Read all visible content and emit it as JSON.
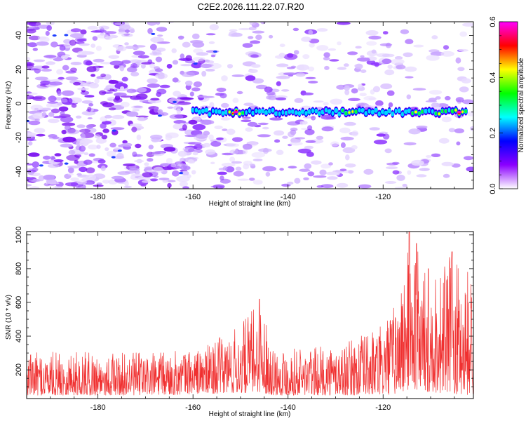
{
  "title": "C2E2.2026.111.22.07.R20",
  "chart_data": [
    {
      "type": "heatmap",
      "name": "spectrogram",
      "xlabel": "Height of straight line (km)",
      "ylabel": "Frequency (Hz)",
      "xlim": [
        -195,
        -101
      ],
      "ylim": [
        -50,
        48
      ],
      "x_ticks": [
        -180,
        -160,
        -140,
        -120
      ],
      "y_ticks": [
        -40,
        -20,
        0,
        20,
        40
      ],
      "signal_line": {
        "frequency_hz": -5,
        "x_start": -160,
        "x_end": -102,
        "peaks": [
          {
            "x": -151,
            "amplitude": 0.6
          },
          {
            "x": -127,
            "amplitude": 0.5
          },
          {
            "x": -113,
            "amplitude": 0.45
          },
          {
            "x": -108,
            "amplitude": 0.45
          },
          {
            "x": -104,
            "amplitude": 0.6
          }
        ]
      },
      "colorbar": {
        "label": "Normalized spectral amplitude",
        "range": [
          0.0,
          0.6
        ],
        "ticks": [
          0.0,
          0.2,
          0.4,
          0.6
        ],
        "tick_labels": [
          "0.0",
          "0.2",
          "0.4",
          "0.6"
        ],
        "colors": [
          "#ffffff",
          "#8b00ff",
          "#0000ff",
          "#00ffff",
          "#00ff00",
          "#ffff00",
          "#ff0000",
          "#ff00ff"
        ]
      }
    },
    {
      "type": "line",
      "name": "snr",
      "xlabel": "Height of straight line (km)",
      "ylabel": "SNR (10 * v/v)",
      "xlim": [
        -195,
        -101
      ],
      "ylim": [
        30,
        1020
      ],
      "x_ticks": [
        -180,
        -160,
        -140,
        -120
      ],
      "y_ticks": [
        200,
        400,
        600,
        800,
        1000
      ],
      "color": "#f03030",
      "series": [
        {
          "name": "SNR",
          "x_start": -195,
          "x_end": -101,
          "envelope": [
            {
              "x": -195,
              "min": 50,
              "max": 300
            },
            {
              "x": -185,
              "min": 50,
              "max": 310
            },
            {
              "x": -175,
              "min": 50,
              "max": 300
            },
            {
              "x": -165,
              "min": 50,
              "max": 310
            },
            {
              "x": -158,
              "min": 60,
              "max": 330
            },
            {
              "x": -150,
              "min": 60,
              "max": 470
            },
            {
              "x": -146,
              "min": 70,
              "max": 620
            },
            {
              "x": -143,
              "min": 50,
              "max": 340
            },
            {
              "x": -135,
              "min": 50,
              "max": 330
            },
            {
              "x": -128,
              "min": 50,
              "max": 360
            },
            {
              "x": -120,
              "min": 50,
              "max": 470
            },
            {
              "x": -117,
              "min": 60,
              "max": 630
            },
            {
              "x": -114,
              "min": 80,
              "max": 1020
            },
            {
              "x": -111,
              "min": 70,
              "max": 780
            },
            {
              "x": -106,
              "min": 60,
              "max": 870
            },
            {
              "x": -101,
              "min": 50,
              "max": 800
            }
          ],
          "peaks": [
            {
              "x": -146,
              "y": 620
            },
            {
              "x": -114.5,
              "y": 1020
            },
            {
              "x": -113,
              "y": 950
            },
            {
              "x": -110.5,
              "y": 800
            },
            {
              "x": -105.5,
              "y": 900
            }
          ]
        }
      ]
    }
  ]
}
